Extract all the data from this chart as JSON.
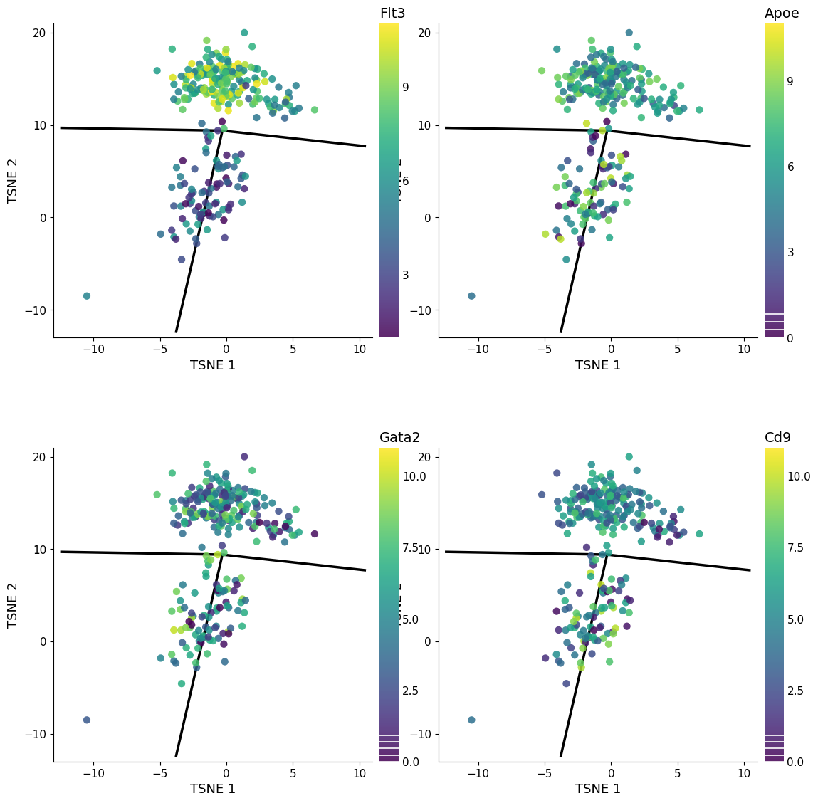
{
  "genes": [
    "Flt3",
    "Apoe",
    "Gata2",
    "Cd9"
  ],
  "xlim": [
    -13,
    11
  ],
  "ylim": [
    -13,
    21
  ],
  "xticks": [
    -10,
    -5,
    0,
    5,
    10
  ],
  "yticks": [
    -10,
    0,
    10,
    20
  ],
  "xlabel": "TSNE 1",
  "ylabel": "TSNE 2",
  "mst_edges": [
    [
      [
        -12.5,
        9.7
      ],
      [
        -0.3,
        9.4
      ]
    ],
    [
      [
        -0.3,
        9.4
      ],
      [
        10.5,
        7.7
      ]
    ],
    [
      [
        -0.3,
        9.4
      ],
      [
        -3.8,
        -12.5
      ]
    ]
  ],
  "colormap": "viridis",
  "flt3_vmin": 1,
  "flt3_vmax": 11,
  "flt3_ticks": [
    3,
    6,
    9
  ],
  "apoe_vmin": 0,
  "apoe_vmax": 11,
  "apoe_ticks": [
    0,
    3,
    6,
    9
  ],
  "gata2_vmin": 0,
  "gata2_vmax": 11,
  "gata2_ticks": [
    0.0,
    2.5,
    5.0,
    7.5,
    10.0
  ],
  "cd9_vmin": 0,
  "cd9_vmax": 11,
  "cd9_ticks": [
    0.0,
    2.5,
    5.0,
    7.5,
    10.0
  ],
  "point_size": 55,
  "point_alpha": 0.85,
  "background_color": "white",
  "line_color": "black",
  "line_width": 2.5,
  "label_fontsize": 13,
  "tick_fontsize": 11,
  "cbar_label_fontsize": 14
}
